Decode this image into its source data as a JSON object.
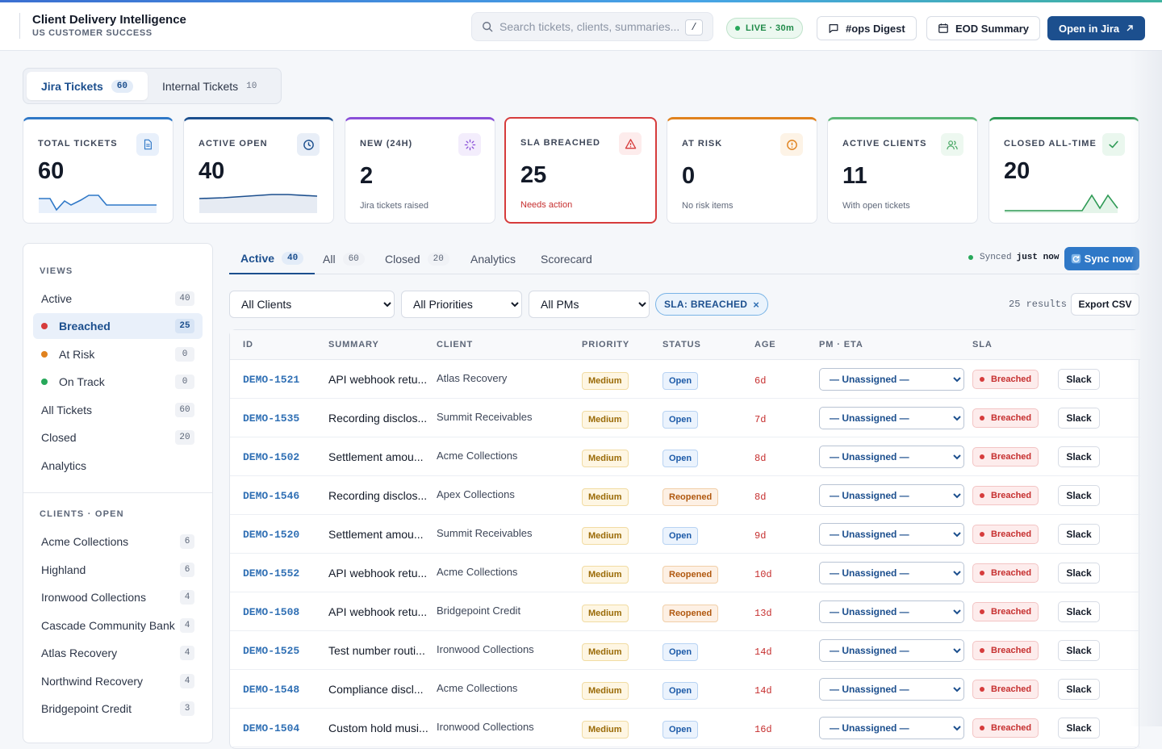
{
  "header": {
    "title": "Client Delivery Intelligence",
    "subtitle": "US CUSTOMER SUCCESS",
    "search_placeholder": "Search tickets, clients, summaries...",
    "search_shortcut": "/",
    "live_label": "LIVE · 30m",
    "ops_digest_label": "#ops Digest",
    "eod_summary_label": "EOD Summary",
    "open_jira_label": "Open in Jira"
  },
  "main_tabs": [
    {
      "label": "Jira Tickets",
      "count": "60"
    },
    {
      "label": "Internal Tickets",
      "count": "10"
    }
  ],
  "kpis": [
    {
      "label": "TOTAL TICKETS",
      "value": "60",
      "sub": "",
      "accent": "#2f78c7",
      "icon": "document-icon"
    },
    {
      "label": "ACTIVE OPEN",
      "value": "40",
      "sub": "",
      "accent": "#1c4f8e",
      "icon": "clock-icon"
    },
    {
      "label": "NEW (24H)",
      "value": "2",
      "sub": "Jira tickets raised",
      "accent": "#8a4fd8",
      "icon": "spinner-icon"
    },
    {
      "label": "SLA BREACHED",
      "value": "25",
      "sub": "Needs action",
      "accent": "#d63c3c",
      "icon": "warning-icon"
    },
    {
      "label": "AT RISK",
      "value": "0",
      "sub": "No risk items",
      "accent": "#e0821e",
      "icon": "alert-circle-icon"
    },
    {
      "label": "ACTIVE CLIENTS",
      "value": "11",
      "sub": "With open tickets",
      "accent": "#5db878",
      "icon": "users-icon"
    },
    {
      "label": "CLOSED ALL-TIME",
      "value": "20",
      "sub": "",
      "accent": "#2e9a55",
      "icon": "check-icon"
    }
  ],
  "sidebar": {
    "views_heading": "VIEWS",
    "views": [
      {
        "label": "Active",
        "count": "40",
        "dot": ""
      },
      {
        "label": "Breached",
        "count": "25",
        "dot": "#d63c3c"
      },
      {
        "label": "At Risk",
        "count": "0",
        "dot": "#e0821e"
      },
      {
        "label": "On Track",
        "count": "0",
        "dot": "#27a85a"
      },
      {
        "label": "All Tickets",
        "count": "60",
        "dot": ""
      },
      {
        "label": "Closed",
        "count": "20",
        "dot": ""
      },
      {
        "label": "Analytics",
        "count": "",
        "dot": ""
      }
    ],
    "clients_heading": "CLIENTS · OPEN",
    "clients": [
      {
        "label": "Acme Collections",
        "count": "6"
      },
      {
        "label": "Highland",
        "count": "6"
      },
      {
        "label": "Ironwood Collections",
        "count": "4"
      },
      {
        "label": "Cascade Community Bank",
        "count": "4"
      },
      {
        "label": "Atlas Recovery",
        "count": "4"
      },
      {
        "label": "Northwind Recovery",
        "count": "4"
      },
      {
        "label": "Bridgepoint Credit",
        "count": "3"
      }
    ]
  },
  "sub_tabs": [
    {
      "label": "Active",
      "count": "40"
    },
    {
      "label": "All",
      "count": "60"
    },
    {
      "label": "Closed",
      "count": "20"
    },
    {
      "label": "Analytics",
      "count": ""
    },
    {
      "label": "Scorecard",
      "count": ""
    }
  ],
  "sync": {
    "synced_label": "Synced",
    "synced_value": "just now",
    "button_label": "Sync now"
  },
  "filters": {
    "clients": "All Clients",
    "priorities": "All Priorities",
    "pms": "All PMs",
    "chip": "SLA: BREACHED",
    "results": "25 results",
    "export": "Export CSV"
  },
  "table": {
    "columns": [
      "ID",
      "SUMMARY",
      "CLIENT",
      "PRIORITY",
      "STATUS",
      "AGE",
      "PM · ETA",
      "SLA"
    ],
    "pm_option": "— Unassigned —",
    "sla_label": "Breached",
    "slack_label": "Slack",
    "rows": [
      {
        "id": "DEMO-1521",
        "summary": "API webhook retu...",
        "client": "Atlas Recovery",
        "priority": "Medium",
        "status": "Open",
        "age": "6d"
      },
      {
        "id": "DEMO-1535",
        "summary": "Recording disclos...",
        "client": "Summit Receivables",
        "priority": "Medium",
        "status": "Open",
        "age": "7d"
      },
      {
        "id": "DEMO-1502",
        "summary": "Settlement amou...",
        "client": "Acme Collections",
        "priority": "Medium",
        "status": "Open",
        "age": "8d"
      },
      {
        "id": "DEMO-1546",
        "summary": "Recording disclos...",
        "client": "Apex Collections",
        "priority": "Medium",
        "status": "Reopened",
        "age": "8d"
      },
      {
        "id": "DEMO-1520",
        "summary": "Settlement amou...",
        "client": "Summit Receivables",
        "priority": "Medium",
        "status": "Open",
        "age": "9d"
      },
      {
        "id": "DEMO-1552",
        "summary": "API webhook retu...",
        "client": "Acme Collections",
        "priority": "Medium",
        "status": "Reopened",
        "age": "10d"
      },
      {
        "id": "DEMO-1508",
        "summary": "API webhook retu...",
        "client": "Bridgepoint Credit",
        "priority": "Medium",
        "status": "Reopened",
        "age": "13d"
      },
      {
        "id": "DEMO-1525",
        "summary": "Test number routi...",
        "client": "Ironwood Collections",
        "priority": "Medium",
        "status": "Open",
        "age": "14d"
      },
      {
        "id": "DEMO-1548",
        "summary": "Compliance discl...",
        "client": "Acme Collections",
        "priority": "Medium",
        "status": "Open",
        "age": "14d"
      },
      {
        "id": "DEMO-1504",
        "summary": "Custom hold musi...",
        "client": "Ironwood Collections",
        "priority": "Medium",
        "status": "Open",
        "age": "16d"
      }
    ]
  }
}
